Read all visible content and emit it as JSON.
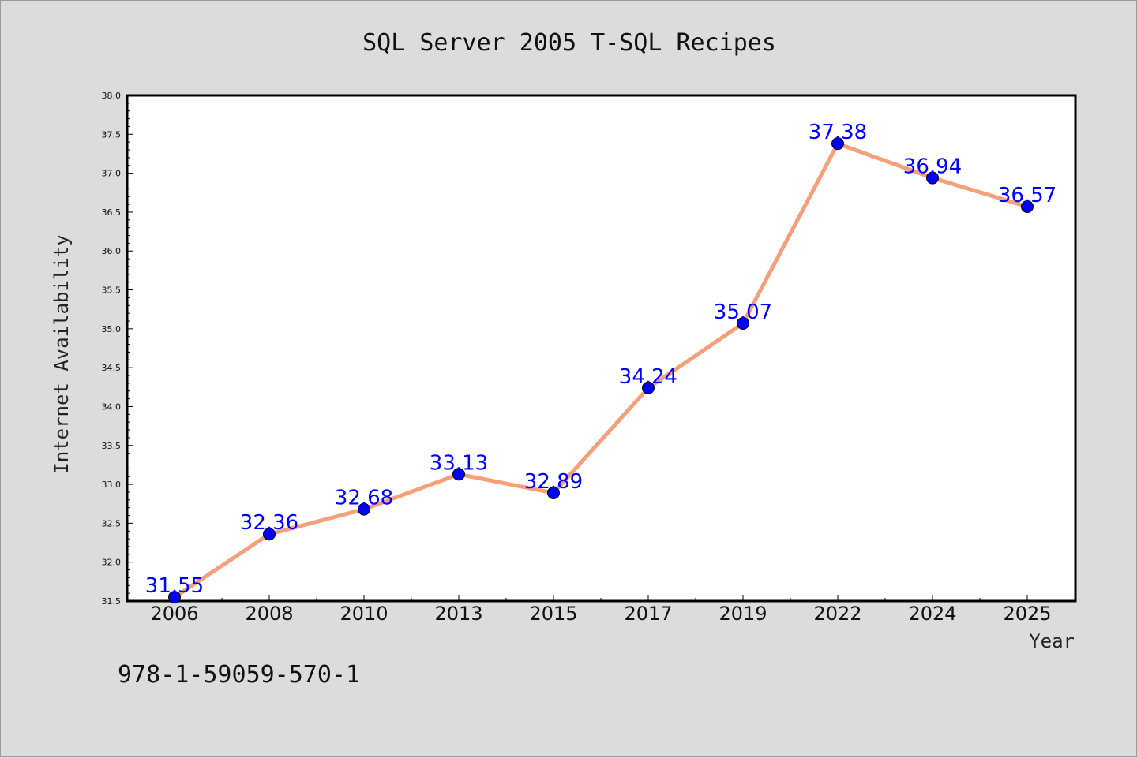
{
  "chart_data": {
    "type": "line",
    "title": "SQL Server 2005 T-SQL Recipes",
    "xlabel": "Year",
    "ylabel": "Internet Availability",
    "categories": [
      "2006",
      "2008",
      "2010",
      "2013",
      "2015",
      "2017",
      "2019",
      "2022",
      "2024",
      "2025"
    ],
    "series": [
      {
        "values": [
          31.55,
          32.36,
          32.68,
          33.13,
          32.89,
          34.24,
          35.07,
          37.38,
          36.94,
          36.57
        ]
      }
    ],
    "data_labels": [
      "31.55",
      "32.36",
      "32.68",
      "33.13",
      "32.89",
      "34.24",
      "35.07",
      "37.38",
      "36.94",
      "36.57"
    ],
    "ylim": [
      31.5,
      38.0
    ],
    "yticks": [
      "31.5",
      "32.0",
      "32.5",
      "33.0",
      "33.5",
      "34.0",
      "34.5",
      "35.0",
      "35.5",
      "36.0",
      "36.5",
      "37.0",
      "37.5",
      "38.0"
    ],
    "grid": false,
    "legend": "none",
    "colors": {
      "line": "#f4a07a",
      "marker": "#0000ff",
      "label": "#0000ff",
      "background": "#dcdcdc",
      "plot_background": "#ffffff"
    }
  },
  "footer_text": "978-1-59059-570-1"
}
